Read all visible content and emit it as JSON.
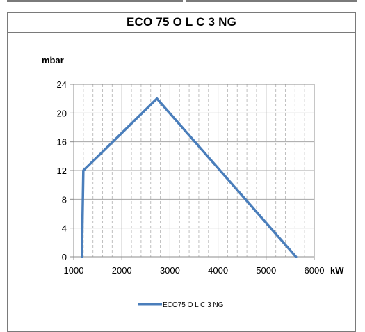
{
  "chart_data": {
    "type": "line",
    "title": "ECO 75 O L C  3 NG",
    "xlabel": "kW",
    "ylabel": "mbar",
    "xlim": [
      1000,
      6000
    ],
    "ylim": [
      0,
      24
    ],
    "x_ticks": [
      1000,
      2000,
      3000,
      4000,
      5000,
      6000
    ],
    "y_ticks": [
      0,
      4,
      8,
      12,
      16,
      20,
      24
    ],
    "grid": true,
    "legend_position": "bottom",
    "series": [
      {
        "name": "ECO75 O L C 3 NG",
        "color": "#4a7ebb",
        "x": [
          1170,
          1200,
          2730,
          5620
        ],
        "y": [
          0,
          12,
          22,
          0
        ]
      }
    ]
  }
}
